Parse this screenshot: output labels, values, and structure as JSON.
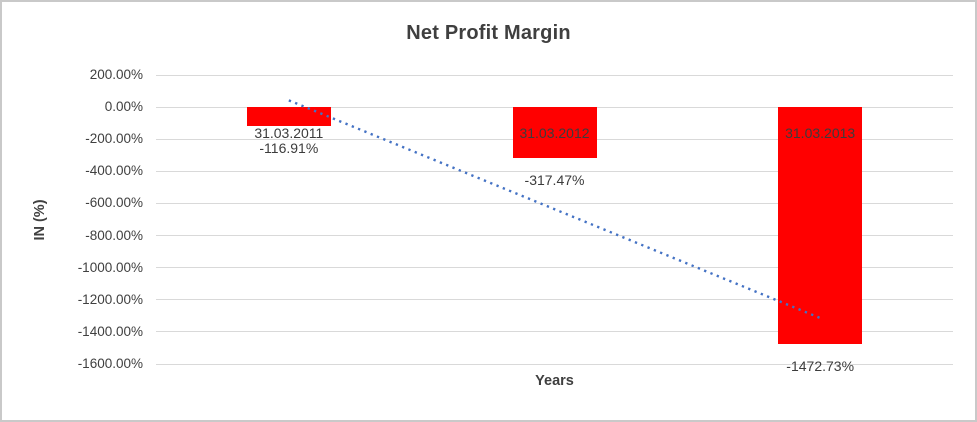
{
  "chart_data": {
    "type": "bar",
    "title": "Net Profit Margin",
    "xlabel": "Years",
    "ylabel": "IN (%)",
    "categories": [
      "31.03.2011",
      "31.03.2012",
      "31.03.2013"
    ],
    "values": [
      -116.91,
      -317.47,
      -1472.73
    ],
    "value_labels": [
      "-116.91%",
      "-317.47%",
      "-1472.73%"
    ],
    "ylim": [
      -1600,
      200
    ],
    "ytick_step": 200,
    "ytick_labels": [
      "200.00%",
      "0.00%",
      "-200.00%",
      "-400.00%",
      "-600.00%",
      "-800.00%",
      "-1000.00%",
      "-1200.00%",
      "-1400.00%",
      "-1600.00%"
    ],
    "grid": true,
    "legend": "none",
    "bar_color": "#ff0000",
    "gridline_color": "#d9d9d9",
    "text_color": "#404040",
    "trendline": {
      "style": "dotted",
      "color": "#4472c4",
      "start_value": 42.2,
      "end_value": -1313.6
    }
  }
}
